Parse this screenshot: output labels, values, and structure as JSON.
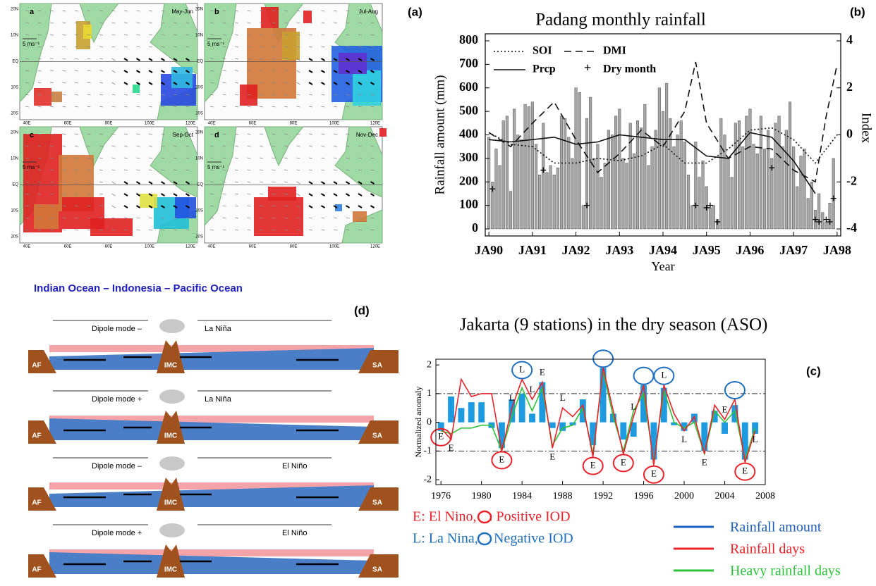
{
  "panel_a": {
    "label": "(a)",
    "maps": [
      {
        "letter": "a",
        "season": "May-Jun",
        "scale": "5 ms⁻¹"
      },
      {
        "letter": "b",
        "season": "Jul-Aug",
        "scale": "5 ms⁻¹"
      },
      {
        "letter": "c",
        "season": "Sep-Oct",
        "scale": "5 ms⁻¹"
      },
      {
        "letter": "d",
        "season": "Nov-Dec",
        "scale": "5 ms⁻¹"
      }
    ],
    "lat_labels": [
      "20N",
      "10N",
      "EQ",
      "10S",
      "20S"
    ],
    "lon_labels": [
      "40E",
      "60E",
      "80E",
      "100E",
      "120E"
    ]
  },
  "chart_data": [
    {
      "type": "bar",
      "panel_label": "(b)",
      "title": "Padang monthly rainfall",
      "x_label": "Year",
      "y_label": "Rainfall amount (mm)",
      "y2_label": "Index",
      "color": "#a6a6a6",
      "x": [
        0,
        1,
        2,
        3,
        4,
        5,
        6,
        7,
        8,
        9,
        10,
        11,
        12,
        13,
        14,
        15,
        16,
        17,
        18,
        19,
        20,
        21,
        22,
        23,
        24,
        25,
        26,
        27,
        28,
        29,
        30,
        31,
        32,
        33,
        34,
        35,
        36,
        37,
        38,
        39,
        40,
        41,
        42,
        43,
        44,
        45,
        46,
        47,
        48,
        49,
        50,
        51,
        52,
        53,
        54,
        55,
        56,
        57,
        58,
        59,
        60,
        61,
        62,
        63,
        64,
        65,
        66,
        67,
        68,
        69,
        70,
        71,
        72,
        73,
        74,
        75,
        76,
        77,
        78,
        79,
        80,
        81,
        82,
        83,
        84,
        85,
        86,
        87,
        88,
        89,
        90,
        91,
        92,
        93,
        94,
        95
      ],
      "values": [
        390,
        200,
        340,
        270,
        460,
        480,
        160,
        510,
        400,
        380,
        530,
        520,
        540,
        360,
        230,
        450,
        240,
        270,
        230,
        260,
        480,
        470,
        390,
        300,
        600,
        580,
        100,
        470,
        560,
        300,
        360,
        220,
        280,
        420,
        400,
        480,
        510,
        300,
        280,
        450,
        320,
        460,
        430,
        530,
        270,
        350,
        420,
        600,
        500,
        620,
        470,
        350,
        400,
        460,
        370,
        230,
        100,
        370,
        220,
        290,
        180,
        90,
        100,
        40,
        470,
        400,
        300,
        220,
        450,
        460,
        350,
        480,
        510,
        360,
        320,
        480,
        340,
        420,
        300,
        450,
        480,
        350,
        420,
        540,
        350,
        180,
        310,
        340,
        130,
        200,
        80,
        150,
        70,
        30,
        110,
        300
      ],
      "xlim": [
        -1,
        97
      ],
      "xticks": [
        {
          "value": 0,
          "label": "JA90"
        },
        {
          "value": 12,
          "label": "JA91"
        },
        {
          "value": 24,
          "label": "JA92"
        },
        {
          "value": 36,
          "label": "JA93"
        },
        {
          "value": 48,
          "label": "JA94"
        },
        {
          "value": 60,
          "label": "JA95"
        },
        {
          "value": 72,
          "label": "JA96"
        },
        {
          "value": 84,
          "label": "JA97"
        },
        {
          "value": 96,
          "label": "JA98"
        }
      ],
      "ylim": [
        -30,
        830
      ],
      "yticks": [
        0,
        100,
        200,
        300,
        400,
        500,
        600,
        700,
        800
      ],
      "y2lim": [
        -4.3,
        4.3
      ],
      "y2ticks": [
        -4,
        -2,
        0,
        2,
        4
      ],
      "lines": [
        {
          "name": "SOI",
          "style": "dotted",
          "axis": "y2",
          "x": [
            0,
            6,
            12,
            18,
            24,
            30,
            36,
            42,
            48,
            54,
            60,
            66,
            72,
            78,
            84,
            90,
            96
          ],
          "values": [
            0.1,
            -0.4,
            -0.5,
            -1.2,
            -1.2,
            -1.0,
            -1.1,
            -0.9,
            -0.4,
            -1.2,
            -1.2,
            -0.6,
            0.2,
            0.3,
            -0.2,
            -1.2,
            0.0
          ]
        },
        {
          "name": "DMI",
          "style": "dashed",
          "axis": "y2",
          "x": [
            0,
            6,
            12,
            18,
            24,
            30,
            36,
            42,
            48,
            54,
            57,
            60,
            66,
            72,
            78,
            84,
            90,
            93,
            96
          ],
          "values": [
            0.1,
            -0.5,
            0.5,
            1.4,
            -0.2,
            -1.6,
            -0.8,
            0.2,
            -0.5,
            1.0,
            3.1,
            0.5,
            -1.0,
            -0.5,
            -0.6,
            -1.5,
            -2.0,
            0.8,
            3.0
          ]
        },
        {
          "name": "Prcp",
          "style": "solid",
          "axis": "y",
          "x": [
            0,
            6,
            12,
            18,
            24,
            30,
            36,
            42,
            48,
            54,
            60,
            66,
            72,
            78,
            84,
            90
          ],
          "values": [
            380,
            370,
            380,
            390,
            360,
            370,
            400,
            390,
            380,
            380,
            310,
            300,
            410,
            390,
            290,
            150
          ]
        }
      ],
      "markers": {
        "name": "Dry month",
        "symbol": "+",
        "x": [
          1,
          15,
          27,
          57,
          60,
          61,
          63,
          78,
          90,
          91,
          93,
          94,
          95
        ],
        "values": [
          170,
          250,
          100,
          100,
          90,
          100,
          30,
          260,
          40,
          30,
          40,
          30,
          130
        ]
      }
    },
    {
      "type": "bar",
      "panel_label": "(c)",
      "title": "Jakarta (9 stations) in the dry season (ASO)",
      "y_label": "Normalized anomaly",
      "x": [
        1976,
        1977,
        1978,
        1979,
        1980,
        1981,
        1982,
        1983,
        1984,
        1985,
        1986,
        1987,
        1988,
        1989,
        1990,
        1991,
        1992,
        1993,
        1994,
        1995,
        1996,
        1997,
        1998,
        1999,
        2000,
        2001,
        2002,
        2003,
        2004,
        2005,
        2006,
        2007
      ],
      "xlim": [
        1975.5,
        2008
      ],
      "xticks": [
        1976,
        1980,
        1984,
        1988,
        1992,
        1996,
        2000,
        2004,
        2008
      ],
      "ylim": [
        -2.17,
        2.2
      ],
      "yticks": [
        -2,
        -1,
        0,
        1,
        2
      ],
      "reference_lines": [
        1,
        -1
      ],
      "series": [
        {
          "name": "Rainfall amount",
          "color": "#1e9be0",
          "values": [
            -0.3,
            0.9,
            0.5,
            0.7,
            0.7,
            -0.2,
            -0.9,
            0.8,
            1.0,
            0.3,
            1.4,
            -0.2,
            -0.3,
            -0.1,
            0.8,
            -0.8,
            1.9,
            0.3,
            -0.6,
            -0.5,
            1.3,
            -1.3,
            1.2,
            -0.1,
            -0.3,
            0.3,
            -1.0,
            0.4,
            -0.4,
            0.6,
            -1.3,
            -0.4
          ]
        },
        {
          "name": "Rainfall days",
          "color": "#e8242a",
          "values": [
            -0.2,
            -0.6,
            1.5,
            0.9,
            1.0,
            1.0,
            -1.0,
            0.5,
            1.5,
            0.8,
            1.4,
            -0.9,
            0.5,
            0.2,
            0.6,
            -1.2,
            1.9,
            0.4,
            -1.1,
            0.2,
            1.3,
            -1.5,
            1.3,
            0.3,
            -0.3,
            0.2,
            -1.1,
            0.6,
            0.1,
            0.8,
            -1.4,
            -0.3
          ]
        },
        {
          "name": "Heavy rainfall days",
          "color": "#2ec23a",
          "values": [
            -0.3,
            -0.4,
            -0.2,
            -0.2,
            -0.1,
            -0.1,
            -1.0,
            0.2,
            1.2,
            0.4,
            1.2,
            -0.8,
            -0.2,
            -0.1,
            0.5,
            -1.1,
            1.8,
            0.2,
            -1.0,
            0.4,
            1.0,
            -1.4,
            1.1,
            0.0,
            -0.2,
            0.0,
            -1.1,
            0.4,
            0.0,
            0.4,
            -1.3,
            -0.2
          ]
        }
      ],
      "enso_letters": [
        {
          "year": 1976,
          "label": "E"
        },
        {
          "year": 1977,
          "label": "E"
        },
        {
          "year": 1982,
          "label": "E"
        },
        {
          "year": 1983,
          "label": "L"
        },
        {
          "year": 1984,
          "label": "L"
        },
        {
          "year": 1985,
          "label": "L"
        },
        {
          "year": 1986,
          "label": "E"
        },
        {
          "year": 1987,
          "label": "E"
        },
        {
          "year": 1988,
          "label": "L"
        },
        {
          "year": 1991,
          "label": "E"
        },
        {
          "year": 1994,
          "label": "E"
        },
        {
          "year": 1995,
          "label": "L"
        },
        {
          "year": 1997,
          "label": "E"
        },
        {
          "year": 1998,
          "label": "L"
        },
        {
          "year": 2000,
          "label": "L"
        },
        {
          "year": 2002,
          "label": "E"
        },
        {
          "year": 2004,
          "label": "E"
        },
        {
          "year": 2006,
          "label": "E"
        },
        {
          "year": 2007,
          "label": "L"
        }
      ],
      "iod_circles": {
        "positive": {
          "color": "#e8242a",
          "years": [
            1976,
            1982,
            1991,
            1994,
            1997,
            2006
          ]
        },
        "negative": {
          "color": "#1f6fc0",
          "years": [
            1984,
            1992,
            1996,
            1998,
            2005
          ]
        }
      },
      "legend_notes": {
        "el_nino": "E: El Nino,",
        "positive_iod": ": Positive IOD",
        "la_nina": "L: La Nina,",
        "negative_iod": "Negative IOD"
      }
    }
  ],
  "panel_d": {
    "label": "(d)",
    "header": "Indian Ocean – Indonesia – Pacific Ocean",
    "rows": [
      {
        "left": "Dipole mode –",
        "right": "La Niña"
      },
      {
        "left": "Dipole mode +",
        "right": "La Niña"
      },
      {
        "left": "Dipole mode –",
        "right": "El Niño"
      },
      {
        "left": "Dipole mode +",
        "right": "El Niño"
      }
    ],
    "blocks": [
      "AF",
      "IMC",
      "SA"
    ]
  }
}
